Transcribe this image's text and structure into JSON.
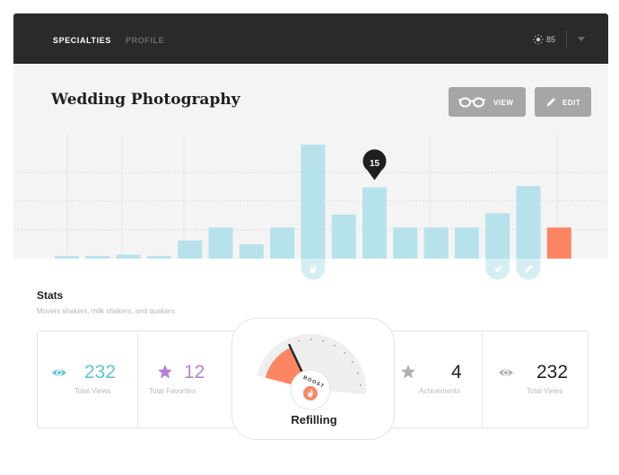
{
  "nav": {
    "items": [
      {
        "label": "SPECIALTIES",
        "active": true
      },
      {
        "label": "PROFILE",
        "active": false
      }
    ],
    "points": "85",
    "icons": {
      "points": "sun-icon",
      "menu": "caret-down-icon"
    }
  },
  "header": {
    "title": "Wedding Photography",
    "view_label": "VIEW",
    "edit_label": "EDIT"
  },
  "chart_data": {
    "type": "bar",
    "values": [
      1,
      1,
      1.5,
      1,
      7,
      12,
      5.5,
      12,
      44,
      17,
      27.5,
      12,
      12,
      12,
      17.5,
      28,
      12
    ],
    "highlight_index": 16,
    "highlight_color": "#fd8563",
    "bar_color": "#b6e2ec",
    "pin": {
      "index": 10,
      "label": "15"
    },
    "badges": [
      {
        "index": 8,
        "icon": "flame-icon"
      },
      {
        "index": 14,
        "icon": "bird-icon"
      },
      {
        "index": 15,
        "icon": "pencil-icon"
      }
    ],
    "grid": true,
    "ylim": [
      0,
      44
    ]
  },
  "stats": {
    "title": "Stats",
    "subtitle": "Movers shakers, milk shakers, and quakers",
    "left": [
      {
        "value": "232",
        "label": "Total Views",
        "icon": "eye-icon",
        "color": "#5ec3dd"
      },
      {
        "value": "12",
        "label": "Total Favorites",
        "icon": "star-icon",
        "color": "#b67fd6"
      }
    ],
    "right": [
      {
        "value": "4",
        "label": "Achivements",
        "icon": "star-icon",
        "color": "#b0b0b0"
      },
      {
        "value": "232",
        "label": "Total Views",
        "icon": "eye-icon",
        "color": "#b0b0b0"
      }
    ],
    "gauge": {
      "label": "Refilling",
      "boost_label": "BOOST",
      "level": 0.28,
      "fill_color": "#fd8563",
      "icon": "flame-icon"
    }
  },
  "colors": {
    "accent": "#fd8563",
    "bar": "#b6e2ec",
    "nav_bg": "#2a2a2a"
  }
}
